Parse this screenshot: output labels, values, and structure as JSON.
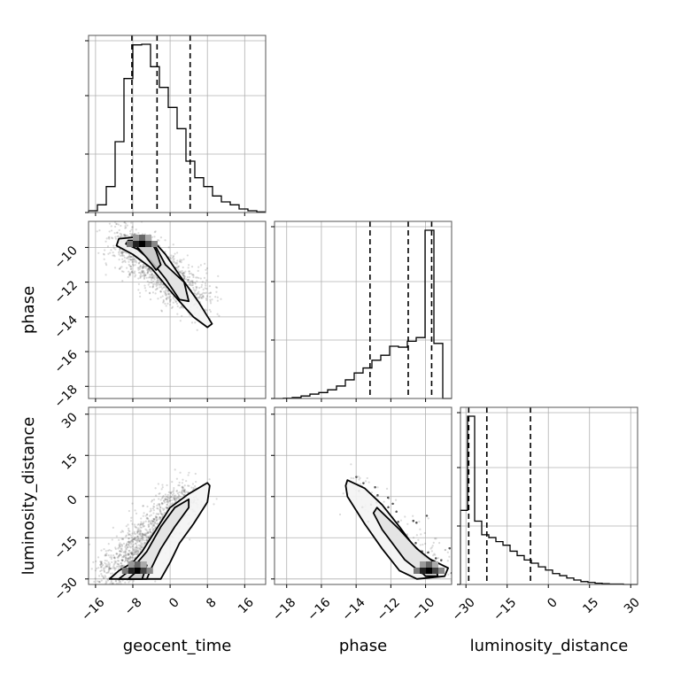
{
  "chart_data": {
    "type": "corner",
    "parameters": [
      "geocent_time",
      "phase",
      "luminosity_distance"
    ],
    "ranges": {
      "geocent_time": [
        -17.5,
        20.5
      ],
      "phase": [
        -18.7,
        -8.5
      ],
      "luminosity_distance": [
        -32,
        32.5
      ]
    },
    "ticks": {
      "geocent_time": [
        -16,
        -8,
        0,
        8,
        16
      ],
      "phase": [
        -18,
        -16,
        -14,
        -12,
        -10
      ],
      "luminosity_distance": [
        -30,
        -15,
        0,
        15,
        30
      ]
    },
    "tick_labels": {
      "geocent_time": [
        "−16",
        "−8",
        "0",
        "8",
        "16"
      ],
      "phase": [
        "−18",
        "−16",
        "−14",
        "−12",
        "−10"
      ],
      "luminosity_distance": [
        "−30",
        "−15",
        "0",
        "15",
        "30"
      ]
    },
    "grid": true,
    "histograms": {
      "geocent_time": {
        "edges": [
          -17.5,
          -15.6,
          -13.7,
          -11.8,
          -9.9,
          -8.0,
          -6.1,
          -4.2,
          -2.3,
          -0.4,
          1.5,
          3.4,
          5.3,
          7.2,
          9.1,
          11.0,
          12.9,
          14.8,
          16.7,
          18.6,
          20.5
        ],
        "counts": [
          3,
          13,
          44,
          120,
          227,
          284,
          285,
          247,
          212,
          178,
          142,
          87,
          59,
          44,
          28,
          18,
          13,
          6,
          3,
          1
        ],
        "quantiles": [
          -8.2,
          -2.8,
          4.3
        ]
      },
      "phase": {
        "edges": [
          -18.7,
          -18.19,
          -17.68,
          -17.17,
          -16.66,
          -16.15,
          -15.64,
          -15.13,
          -14.62,
          -14.11,
          -13.6,
          -13.09,
          -12.58,
          -12.07,
          -11.56,
          -11.05,
          -10.54,
          -10.03,
          -9.52,
          -9.01,
          -8.5
        ],
        "counts": [
          0,
          1,
          3,
          8,
          14,
          19,
          28,
          40,
          60,
          82,
          98,
          123,
          139,
          168,
          165,
          184,
          196,
          541,
          177,
          0
        ],
        "quantiles": [
          -13.2,
          -11.0,
          -9.65
        ]
      },
      "luminosity_distance": {
        "edges": [
          -32,
          -29.42,
          -26.84,
          -24.26,
          -21.68,
          -19.1,
          -16.52,
          -13.94,
          -11.36,
          -8.78,
          -6.2,
          -3.62,
          -1.04,
          1.54,
          4.12,
          6.7,
          9.28,
          11.86,
          14.44,
          17.02,
          19.6,
          22.18,
          24.76,
          27.34,
          29.92,
          32.5
        ],
        "counts": [
          185,
          420,
          158,
          124,
          117,
          107,
          98,
          83,
          72,
          61,
          53,
          44,
          36,
          27,
          22,
          16,
          11,
          7,
          5,
          3,
          2,
          1,
          1,
          0,
          0
        ],
        "quantiles": [
          -29.0,
          -22.4,
          -6.5
        ]
      }
    },
    "pairs": {
      "phase_vs_geocent_time": {
        "x_param": "geocent_time",
        "y_param": "phase",
        "correlation": "negative",
        "contours": [
          [
            [
              -11,
              -9.5
            ],
            [
              -7,
              -9.4
            ],
            [
              -3,
              -9.8
            ],
            [
              -1,
              -10.4
            ],
            [
              2,
              -11.6
            ],
            [
              6,
              -13.1
            ],
            [
              9,
              -14.4
            ],
            [
              8,
              -14.6
            ],
            [
              5,
              -14.0
            ],
            [
              1,
              -12.8
            ],
            [
              -4,
              -11.2
            ],
            [
              -8,
              -10.4
            ],
            [
              -11.5,
              -9.9
            ]
          ],
          [
            [
              -9,
              -9.6
            ],
            [
              -5,
              -9.6
            ],
            [
              -3,
              -10.0
            ],
            [
              -1,
              -11.0
            ],
            [
              3,
              -12.0
            ],
            [
              4,
              -13.1
            ],
            [
              2,
              -13.0
            ],
            [
              -1,
              -11.8
            ],
            [
              -4,
              -10.8
            ],
            [
              -7,
              -10.1
            ],
            [
              -9.5,
              -9.8
            ]
          ],
          [
            [
              -7,
              -9.6
            ],
            [
              -4,
              -9.7
            ],
            [
              -3,
              -10.2
            ],
            [
              -2,
              -11.0
            ],
            [
              -3,
              -11.3
            ],
            [
              -5,
              -10.6
            ],
            [
              -7,
              -10.0
            ]
          ]
        ],
        "density_peak": [
          -6,
          -9.8
        ]
      },
      "luminosity_distance_vs_geocent_time": {
        "x_param": "geocent_time",
        "y_param": "luminosity_distance",
        "correlation": "positive",
        "contours": [
          [
            [
              -13,
              -30
            ],
            [
              -11,
              -27
            ],
            [
              -8,
              -24
            ],
            [
              -6,
              -20
            ],
            [
              -3,
              -12
            ],
            [
              0,
              -4
            ],
            [
              4,
              1
            ],
            [
              8,
              5
            ],
            [
              8.5,
              4
            ],
            [
              8,
              -2
            ],
            [
              5,
              -10
            ],
            [
              2,
              -17
            ],
            [
              0,
              -24
            ],
            [
              -2,
              -30
            ]
          ],
          [
            [
              -11,
              -30
            ],
            [
              -8,
              -26
            ],
            [
              -5,
              -20
            ],
            [
              -2,
              -11
            ],
            [
              1,
              -4
            ],
            [
              4,
              -1
            ],
            [
              4,
              -4
            ],
            [
              1,
              -11
            ],
            [
              -2,
              -19
            ],
            [
              -4,
              -26
            ],
            [
              -5,
              -30
            ]
          ],
          [
            [
              -9,
              -30
            ],
            [
              -7,
              -27
            ],
            [
              -5,
              -25
            ],
            [
              -6,
              -30
            ]
          ]
        ],
        "density_peak": [
          -7,
          -27
        ]
      },
      "luminosity_distance_vs_phase": {
        "x_param": "phase",
        "y_param": "luminosity_distance",
        "correlation": "negative",
        "contours": [
          [
            [
              -14.5,
              6
            ],
            [
              -13.5,
              3
            ],
            [
              -12.5,
              -3
            ],
            [
              -11.5,
              -11
            ],
            [
              -10.8,
              -17
            ],
            [
              -10,
              -22
            ],
            [
              -8.7,
              -26
            ],
            [
              -8.9,
              -29
            ],
            [
              -10.5,
              -30
            ],
            [
              -11.5,
              -27
            ],
            [
              -12.5,
              -19
            ],
            [
              -13.5,
              -10
            ],
            [
              -14.5,
              0
            ],
            [
              -14.6,
              4
            ]
          ],
          [
            [
              -12.8,
              -4
            ],
            [
              -11.5,
              -12
            ],
            [
              -10.5,
              -19
            ],
            [
              -9.5,
              -24
            ],
            [
              -9.2,
              -27
            ],
            [
              -10.2,
              -28
            ],
            [
              -11.2,
              -23
            ],
            [
              -12.5,
              -12
            ],
            [
              -13.0,
              -6
            ]
          ],
          [
            [
              -10.2,
              -24
            ],
            [
              -9.4,
              -26
            ],
            [
              -9.3,
              -29
            ],
            [
              -10.0,
              -29
            ],
            [
              -10.3,
              -27
            ]
          ]
        ],
        "density_peak": [
          -9.8,
          -27
        ]
      }
    }
  }
}
